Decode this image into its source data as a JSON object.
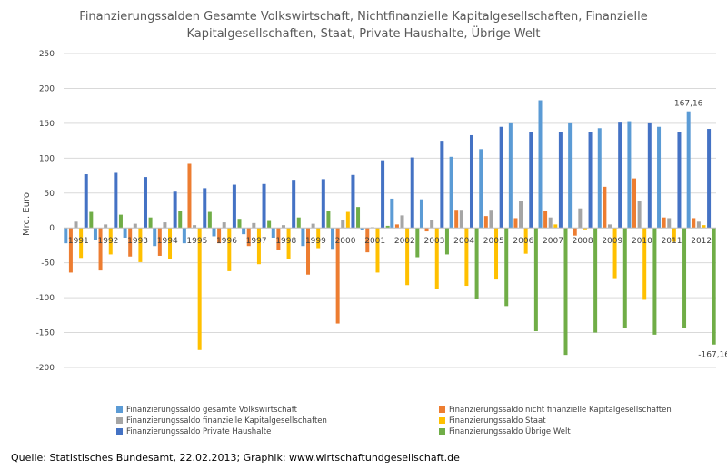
{
  "chart_data": {
    "type": "bar",
    "title_lines": [
      "Finanzierungssalden Gesamte Volkswirtschaft, Nichtfinanzielle Kapitalgesellschaften, Finanzielle",
      "Kapitalgesellschaften, Staat, Private Haushalte, Übrige Welt"
    ],
    "ylabel": "Mrd. Euro",
    "ylim": [
      -200,
      250
    ],
    "yticks": [
      -200,
      -150,
      -100,
      -50,
      0,
      50,
      100,
      150,
      200,
      250
    ],
    "grid": true,
    "legend_position": "bottom",
    "categories": [
      "1991",
      "1992",
      "1993",
      "1994",
      "1995",
      "1996",
      "1997",
      "1998",
      "1999",
      "2000",
      "2001",
      "2002",
      "2003",
      "2004",
      "2005",
      "2006",
      "2007",
      "2008",
      "2009",
      "2010",
      "2011",
      "2012"
    ],
    "series": [
      {
        "name": "Finanzierungssaldo gesamte Volkswirtschaft",
        "color": "#5B9BD5",
        "values": [
          -22,
          -17,
          -14,
          -26,
          -22,
          -12,
          -9,
          -14,
          -26,
          -30,
          -3,
          42,
          41,
          102,
          113,
          150,
          183,
          150,
          143,
          153,
          145,
          167.16
        ]
      },
      {
        "name": "Finanzierungssaldo nicht finanzielle Kapitalgesellschaften",
        "color": "#ED7D31",
        "values": [
          -64,
          -61,
          -41,
          -40,
          92,
          -22,
          -26,
          -32,
          -67,
          -137,
          -35,
          5,
          -5,
          26,
          17,
          14,
          24,
          -11,
          59,
          71,
          15,
          14
        ]
      },
      {
        "name": "Finanzierungssaldo finanzielle Kapitalgesellschaften",
        "color": "#A5A5A5",
        "values": [
          9,
          5,
          6,
          8,
          4,
          8,
          7,
          4,
          6,
          11,
          1,
          18,
          11,
          26,
          26,
          38,
          15,
          28,
          5,
          38,
          14,
          9
        ]
      },
      {
        "name": "Finanzierungssaldo Staat",
        "color": "#FFC000",
        "values": [
          -43,
          -38,
          -49,
          -44,
          -175,
          -62,
          -52,
          -45,
          -29,
          23,
          -64,
          -82,
          -88,
          -83,
          -74,
          -37,
          5,
          -2,
          -72,
          -103,
          -20,
          4
        ]
      },
      {
        "name": "Finanzierungssaldo Private Haushalte",
        "color": "#4472C4",
        "values": [
          77,
          79,
          73,
          52,
          57,
          62,
          63,
          69,
          70,
          76,
          97,
          101,
          125,
          133,
          145,
          137,
          137,
          138,
          151,
          150,
          137,
          142
        ]
      },
      {
        "name": "Finanzierungssaldo Übrige Welt",
        "color": "#70AD47",
        "values": [
          23,
          19,
          15,
          25,
          23,
          13,
          10,
          15,
          25,
          30,
          3,
          -42,
          -38,
          -102,
          -112,
          -148,
          -182,
          -150,
          -143,
          -153,
          -143,
          -167.16
        ]
      }
    ],
    "annotations": [
      {
        "text": "167,16",
        "category": "2012",
        "series": 0
      },
      {
        "text": "-167,16",
        "category": "2012",
        "series": 5
      }
    ]
  },
  "source": "Quelle: Statistisches Bundesamt, 22.02.2013; Graphik: www.wirtschaftundgesellschaft.de"
}
